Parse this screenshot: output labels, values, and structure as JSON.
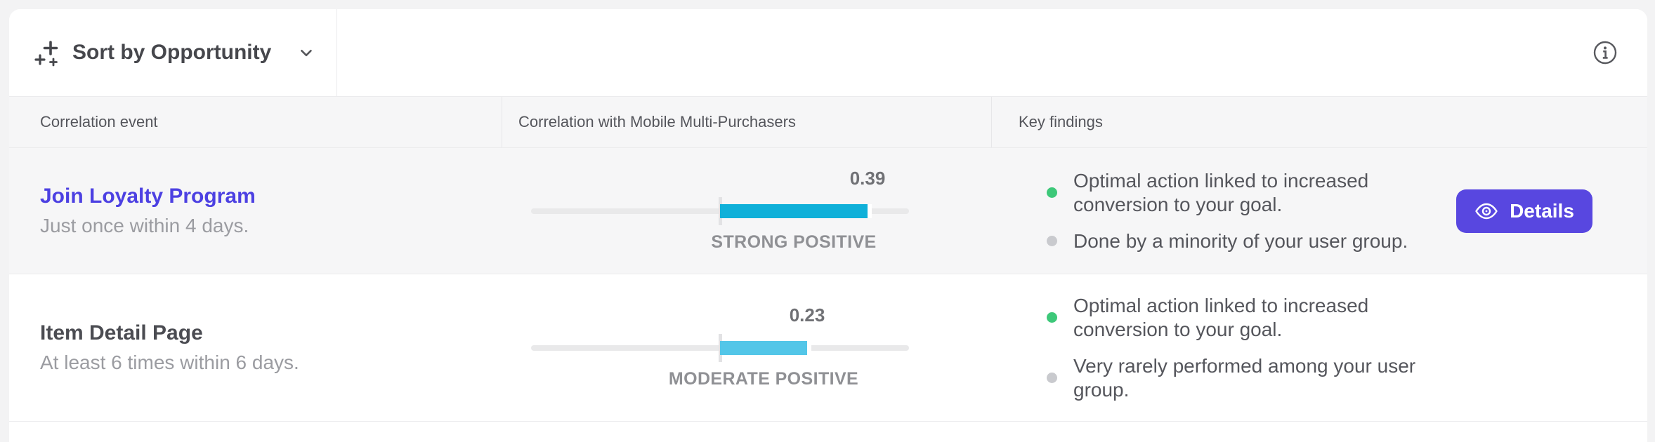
{
  "toolbar": {
    "sort_label": "Sort by Opportunity",
    "sort_icon": "sparkle-plus-icon",
    "chevron_icon": "chevron-down-icon",
    "info_icon": "info-circle-icon"
  },
  "table": {
    "columns": [
      {
        "label": "Correlation event"
      },
      {
        "label": "Correlation with Mobile Multi-Purchasers"
      },
      {
        "label": "Key findings"
      }
    ],
    "rows": [
      {
        "event_title": "Join Loyalty Program",
        "event_title_style": "link",
        "event_subtitle": "Just once within 4 days.",
        "correlation": {
          "value": 0.39,
          "display_value": "0.39",
          "strength_label": "STRONG POSITIVE",
          "bar_color": "#0FB0D9",
          "scale_min": -0.5,
          "scale_max": 0.5
        },
        "findings": [
          {
            "dot_color": "#3DC879",
            "dot_meaning": "positive",
            "text": "Optimal action linked to increased conversion to your goal."
          },
          {
            "dot_color": "#C9CACE",
            "dot_meaning": "neutral",
            "text": "Done by a minority of your user group."
          }
        ],
        "action_label": "Details"
      },
      {
        "event_title": "Item Detail Page",
        "event_title_style": "plain",
        "event_subtitle": "At least 6 times within 6 days.",
        "correlation": {
          "value": 0.23,
          "display_value": "0.23",
          "strength_label": "MODERATE POSITIVE",
          "bar_color": "#53C6E8",
          "scale_min": -0.5,
          "scale_max": 0.5
        },
        "findings": [
          {
            "dot_color": "#3DC879",
            "dot_meaning": "positive",
            "text": "Optimal action linked to increased conversion to your goal."
          },
          {
            "dot_color": "#C9CACE",
            "dot_meaning": "neutral",
            "text": "Very rarely performed among your user group."
          }
        ]
      }
    ]
  },
  "colors": {
    "accent_indigo": "#5847E0",
    "link_indigo": "#4C40E2",
    "bar_strong": "#0FB0D9",
    "bar_moderate": "#53C6E8",
    "positive_green": "#3DC879",
    "neutral_gray": "#C9CACE",
    "track_gray": "#e9e9ea",
    "row_alt_bg": "#f6f6f7"
  }
}
